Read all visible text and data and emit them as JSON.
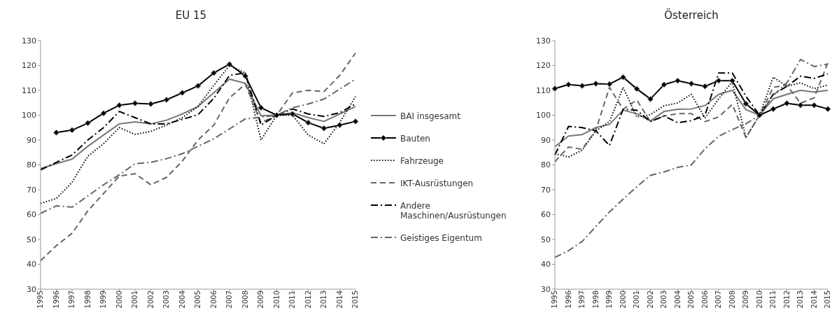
{
  "chart_data": [
    {
      "type": "line",
      "title": "EU 15",
      "categories": [
        "1995",
        "1996",
        "1997",
        "1998",
        "1999",
        "2000",
        "2001",
        "2002",
        "2003",
        "2004",
        "2005",
        "2006",
        "2007",
        "2008",
        "2009",
        "2010",
        "2011",
        "2012",
        "2013",
        "2014",
        "2015"
      ],
      "ylim": [
        30,
        130
      ],
      "yticks": [
        30,
        40,
        50,
        60,
        70,
        80,
        90,
        100,
        110,
        120,
        130
      ],
      "legend": "right",
      "series": [
        {
          "name": "BAI insgesamt",
          "color": "#777777",
          "line_style": "solid",
          "marker": "none",
          "values": [
            78.5,
            80.5,
            82.3,
            87.5,
            92,
            96.5,
            97.3,
            96.5,
            98,
            100.5,
            103.5,
            109,
            114.5,
            112.8,
            99.8,
            100,
            101,
            99,
            97.5,
            100.5,
            103.5
          ]
        },
        {
          "name": "Bauten",
          "color": "#000000",
          "line_style": "solid",
          "marker": "diamond",
          "values": [
            null,
            93,
            94,
            96.8,
            100.8,
            104,
            104.8,
            104.5,
            106.2,
            109,
            111.8,
            117,
            120.5,
            115.8,
            103,
            100,
            100.5,
            97,
            94.7,
            96,
            97.5
          ]
        },
        {
          "name": "Fahrzeuge",
          "color": "#000000",
          "line_style": "dotted",
          "marker": "none",
          "values": [
            64.5,
            66.5,
            73,
            83.5,
            88.5,
            95,
            92.3,
            93.5,
            96,
            99,
            103.5,
            112,
            120,
            117,
            90,
            100,
            100,
            92,
            88.5,
            97,
            107.5
          ]
        },
        {
          "name": "IKT-Ausrüstungen",
          "color": "#666666",
          "line_style": "dashed",
          "marker": "none",
          "values": [
            41.5,
            47.5,
            52.5,
            61.5,
            68.5,
            75.5,
            76.5,
            72,
            75,
            81.5,
            90,
            96,
            107,
            112.5,
            97,
            100,
            109,
            110,
            109.5,
            116,
            125
          ]
        },
        {
          "name": "Andere Maschinen/Ausrüstungen",
          "color": "#000000",
          "line_style": "dashdot",
          "marker": "none",
          "values": [
            78,
            81,
            84,
            90,
            95,
            101.5,
            99,
            96.5,
            96.5,
            98.3,
            100.2,
            106.8,
            116,
            117,
            96,
            100,
            102.5,
            100.5,
            99.5,
            101,
            104.5
          ]
        },
        {
          "name": "Geistiges Eigentum",
          "color": "#666666",
          "line_style": "dashdot",
          "marker": "none",
          "values": [
            60.5,
            63.5,
            63,
            67.5,
            72,
            76,
            80.5,
            81,
            82.5,
            84.5,
            87.5,
            90.5,
            94.5,
            98.5,
            99.2,
            100,
            103,
            104.5,
            106.5,
            110.5,
            114.5
          ]
        }
      ]
    },
    {
      "type": "line",
      "title": "Österreich",
      "categories": [
        "1995",
        "1996",
        "1997",
        "1998",
        "1999",
        "2000",
        "2001",
        "2002",
        "2003",
        "2004",
        "2005",
        "2006",
        "2007",
        "2008",
        "2009",
        "2010",
        "2011",
        "2012",
        "2013",
        "2014",
        "2015"
      ],
      "ylim": [
        30,
        130
      ],
      "yticks": [
        30,
        40,
        50,
        60,
        70,
        80,
        90,
        100,
        110,
        120,
        130
      ],
      "series": [
        {
          "color": "#777777",
          "line_style": "solid",
          "marker": "none",
          "values": [
            87.3,
            91.6,
            92.2,
            95,
            96.3,
            102,
            100.6,
            97.7,
            101.5,
            102.4,
            102.5,
            103.9,
            108.4,
            110,
            102.2,
            100,
            106.6,
            108.4,
            110,
            109.3,
            110
          ]
        },
        {
          "color": "#000000",
          "line_style": "solid",
          "marker": "diamond",
          "values": [
            110.7,
            112.3,
            111.8,
            112.7,
            112.5,
            115.3,
            110.6,
            106.5,
            112.3,
            113.9,
            112.7,
            111.6,
            113.9,
            113.9,
            104.6,
            100,
            102.5,
            104.8,
            104,
            104,
            102.5
          ]
        },
        {
          "color": "#000000",
          "line_style": "dotted",
          "marker": "none",
          "values": [
            84.5,
            83.2,
            85.9,
            93.7,
            97.4,
            111.2,
            99.3,
            100.2,
            103.8,
            104.9,
            108.4,
            98.8,
            106.6,
            113.5,
            91,
            100,
            115.3,
            111.6,
            113,
            110.7,
            112.1
          ]
        },
        {
          "color": "#666666",
          "line_style": "dashed",
          "marker": "none",
          "values": [
            81.3,
            87.2,
            86.3,
            94,
            111.2,
            102.4,
            106.1,
            97.4,
            99.7,
            100.6,
            100.6,
            97.4,
            99.3,
            104.3,
            91,
            100,
            111.2,
            112.1,
            104.8,
            107,
            121
          ]
        },
        {
          "color": "#000000",
          "line_style": "dashdot",
          "marker": "none",
          "values": [
            84,
            95.5,
            95,
            93.7,
            87.8,
            102.4,
            102,
            97.4,
            99.7,
            97,
            97.8,
            100,
            117,
            117,
            107.6,
            100,
            108.4,
            111.6,
            115.7,
            114.8,
            116.6
          ]
        },
        {
          "color": "#666666",
          "line_style": "dashdot",
          "marker": "none",
          "values": [
            42.8,
            45.5,
            49.2,
            55.2,
            61.1,
            66.2,
            71.2,
            75.8,
            77.2,
            79,
            80,
            86.5,
            91.5,
            94.2,
            96.5,
            100,
            108,
            113,
            122.4,
            119.6,
            120.5
          ]
        }
      ]
    }
  ]
}
